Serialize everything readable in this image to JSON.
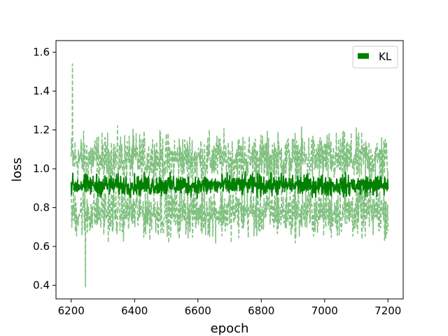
{
  "chart_data": {
    "type": "line",
    "title": "",
    "xlabel": "epoch",
    "ylabel": "loss",
    "xlim": [
      6152,
      7248
    ],
    "ylim": [
      0.33,
      1.66
    ],
    "xticks": [
      6200,
      6400,
      6600,
      6800,
      7000,
      7200
    ],
    "xtick_labels": [
      "6200",
      "6400",
      "6600",
      "6800",
      "7000",
      "7200"
    ],
    "yticks": [
      0.4,
      0.6,
      0.8,
      1.0,
      1.2,
      1.4,
      1.6
    ],
    "ytick_labels": [
      "0.4",
      "0.6",
      "0.8",
      "1.0",
      "1.2",
      "1.4",
      "1.6"
    ],
    "grid": false,
    "legend_position": "top-right",
    "legend": [
      "KL"
    ],
    "x_range": [
      6200,
      7200
    ],
    "series": [
      {
        "name": "KL",
        "role": "mean",
        "color": "#008000",
        "style": "solid",
        "center": 0.915,
        "amplitude": 0.05
      },
      {
        "role": "upper-bound",
        "color": "#80c080",
        "style": "dashed",
        "center": 1.05,
        "amplitude": 0.12,
        "max_point": [
          6204,
          1.54
        ]
      },
      {
        "role": "lower-bound",
        "color": "#80c080",
        "style": "dashed",
        "center": 0.78,
        "amplitude": 0.12,
        "min_point": [
          6245,
          0.39
        ]
      }
    ]
  }
}
